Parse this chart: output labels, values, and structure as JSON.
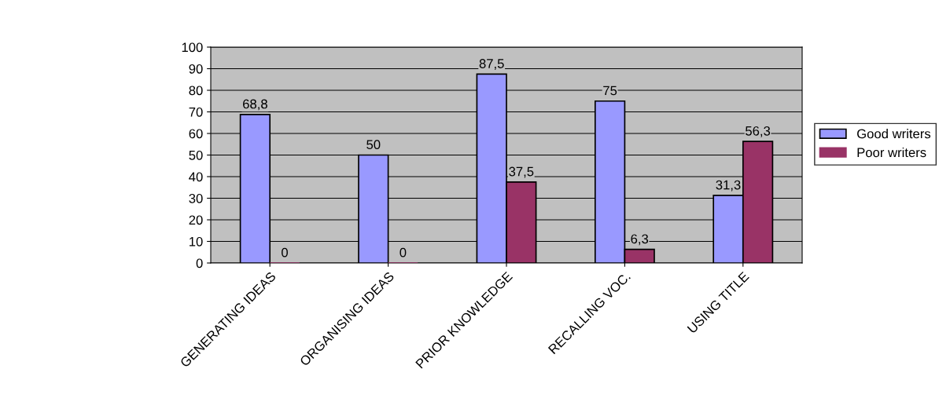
{
  "chart_data": {
    "type": "bar",
    "categories": [
      "GENERATING IDEAS",
      "ORGANISING IDEAS",
      "PRIOR KNOWLEDGE",
      "RECALLING VOC.",
      "USING TITLE"
    ],
    "series": [
      {
        "name": "Good writers",
        "color": "#9999ff",
        "values": [
          68.8,
          50,
          87.5,
          75,
          31.3
        ],
        "value_labels": [
          "68,8",
          "50",
          "87,5",
          "75",
          "31,3"
        ]
      },
      {
        "name": "Poor writers",
        "color": "#993366",
        "values": [
          0,
          0,
          37.5,
          6.3,
          56.3
        ],
        "value_labels": [
          "0",
          "0",
          "37,5",
          "6,3",
          "56,3"
        ]
      }
    ],
    "ylim": [
      0,
      100
    ],
    "yticks": [
      0,
      10,
      20,
      30,
      40,
      50,
      60,
      70,
      80,
      90,
      100
    ],
    "grid": "y",
    "legend": "right"
  }
}
